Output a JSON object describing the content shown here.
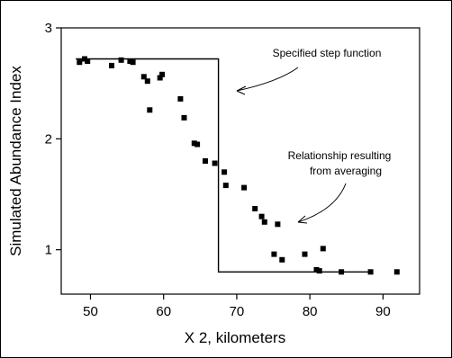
{
  "chart_data": {
    "type": "scatter",
    "xlabel": "X 2, kilometers",
    "ylabel": "Simulated Abundance Index",
    "xlim": [
      46,
      95
    ],
    "ylim": [
      0.6,
      3.0
    ],
    "xticks": [
      50,
      60,
      70,
      80,
      90
    ],
    "yticks": [
      1,
      2,
      3
    ],
    "grid": false,
    "annotations": [
      {
        "text": "Specified step function"
      },
      {
        "text": "Relationship resulting"
      },
      {
        "text": "from averaging"
      }
    ],
    "step_function": {
      "x": [
        48,
        67.5,
        67.5,
        88.5
      ],
      "y": [
        2.72,
        2.72,
        0.8,
        0.8
      ]
    },
    "points": {
      "x": [
        48.5,
        49.2,
        49.6,
        52.9,
        54.2,
        55.4,
        55.8,
        57.3,
        57.8,
        58.1,
        59.5,
        59.8,
        62.3,
        62.8,
        64.2,
        64.6,
        65.7,
        67.0,
        68.3,
        68.5,
        71.0,
        72.5,
        73.4,
        73.8,
        75.1,
        75.6,
        76.2,
        79.3,
        80.9,
        81.3,
        81.8,
        84.3,
        88.3,
        91.9
      ],
      "y": [
        2.69,
        2.72,
        2.7,
        2.66,
        2.71,
        2.7,
        2.69,
        2.56,
        2.52,
        2.26,
        2.55,
        2.58,
        2.36,
        2.19,
        1.96,
        1.95,
        1.8,
        1.78,
        1.7,
        1.58,
        1.56,
        1.37,
        1.3,
        1.25,
        0.96,
        1.23,
        0.91,
        0.96,
        0.82,
        0.81,
        1.01,
        0.8,
        0.8,
        0.8
      ]
    }
  }
}
